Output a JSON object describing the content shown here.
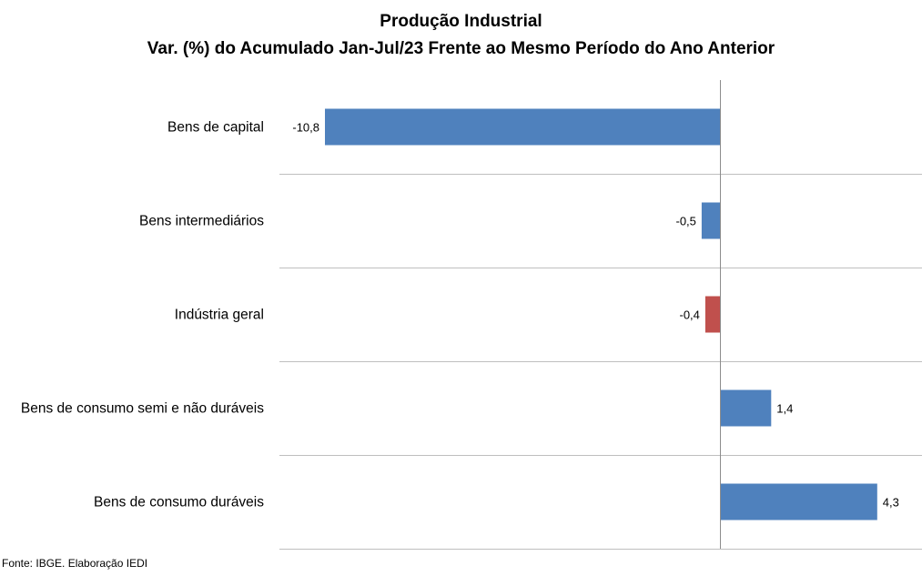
{
  "chart_data": {
    "type": "bar",
    "orientation": "horizontal",
    "title": "Produção Industrial",
    "subtitle": "Var. (%) do Acumulado Jan-Jul/23 Frente ao Mesmo Período do Ano Anterior",
    "categories": [
      "Bens de capital",
      "Bens intermediários",
      "Indústria geral",
      "Bens de consumo semi e não duráveis",
      "Bens de consumo duráveis"
    ],
    "values": [
      -10.8,
      -0.5,
      -0.4,
      1.4,
      4.3
    ],
    "value_labels": [
      "-10,8",
      "-0,5",
      "-0,4",
      "1,4",
      "4,3"
    ],
    "colors": [
      "#4F81BD",
      "#4F81BD",
      "#C0504D",
      "#4F81BD",
      "#4F81BD"
    ],
    "xlim": [
      -12.0,
      5.5
    ],
    "grid": true,
    "legend": "none"
  },
  "source": "Fonte: IBGE. Elaboração IEDI"
}
